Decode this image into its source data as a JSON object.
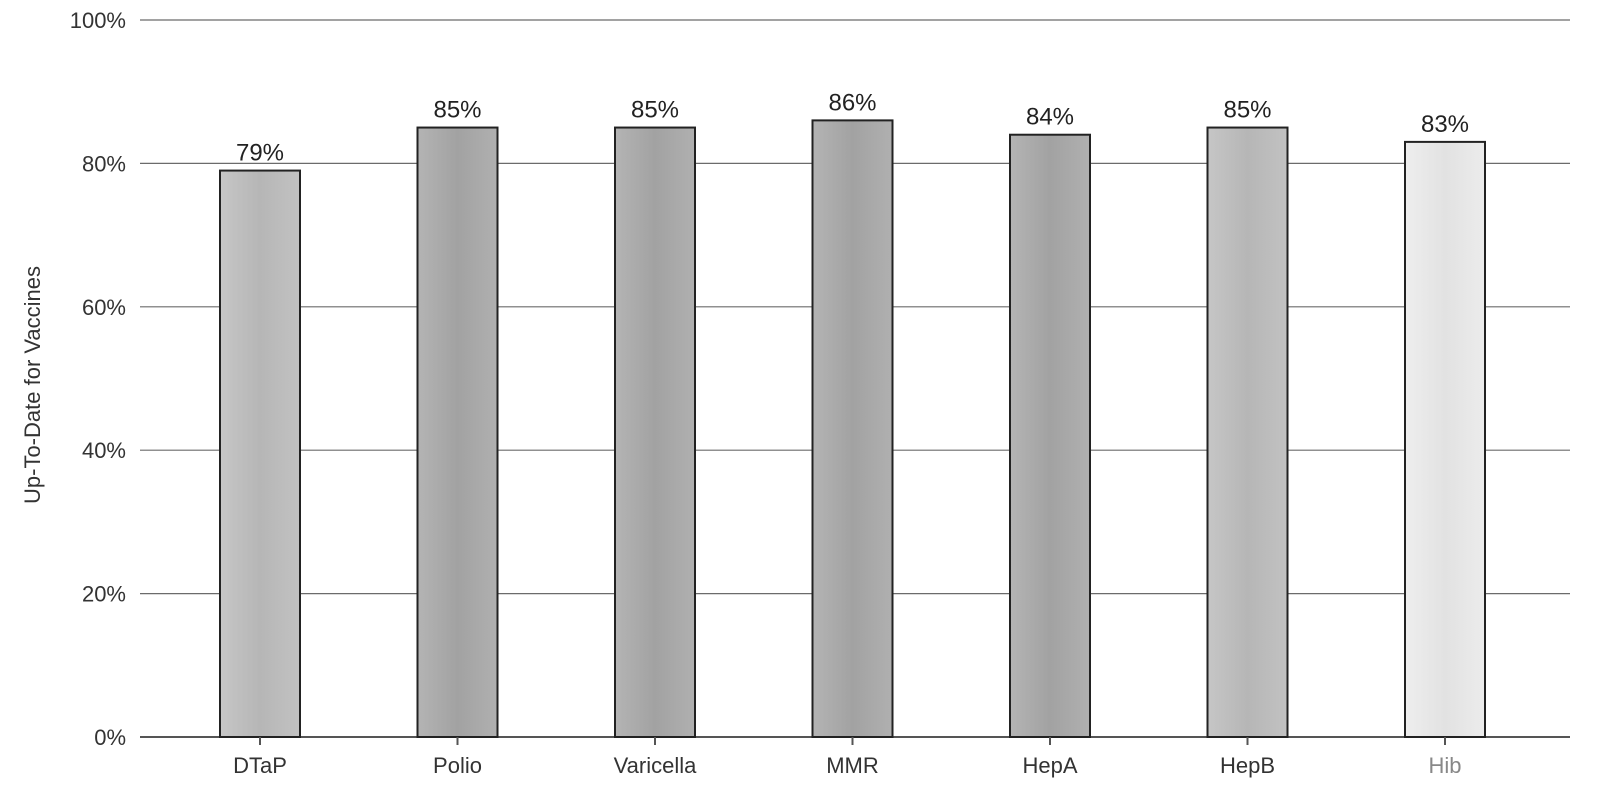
{
  "chart_data": {
    "type": "bar",
    "title": "",
    "xlabel": "",
    "ylabel": "Up-To-Date for Vaccines",
    "categories": [
      "DTaP",
      "Polio",
      "Varicella",
      "MMR",
      "HepA",
      "HepB",
      "Hib"
    ],
    "values": [
      79,
      85,
      85,
      86,
      84,
      85,
      83
    ],
    "data_labels": [
      "79%",
      "85%",
      "85%",
      "86%",
      "84%",
      "85%",
      "83%"
    ],
    "ylim": [
      0,
      100
    ],
    "yticks": [
      0,
      20,
      40,
      60,
      80,
      100
    ],
    "ytick_labels": [
      "0%",
      "20%",
      "40%",
      "60%",
      "80%",
      "100%"
    ],
    "grid": true,
    "colors": {
      "bar_dark": "#a9a9a9",
      "bar_light": "#e6e6e6",
      "gridline": "#6b6b6b"
    }
  }
}
